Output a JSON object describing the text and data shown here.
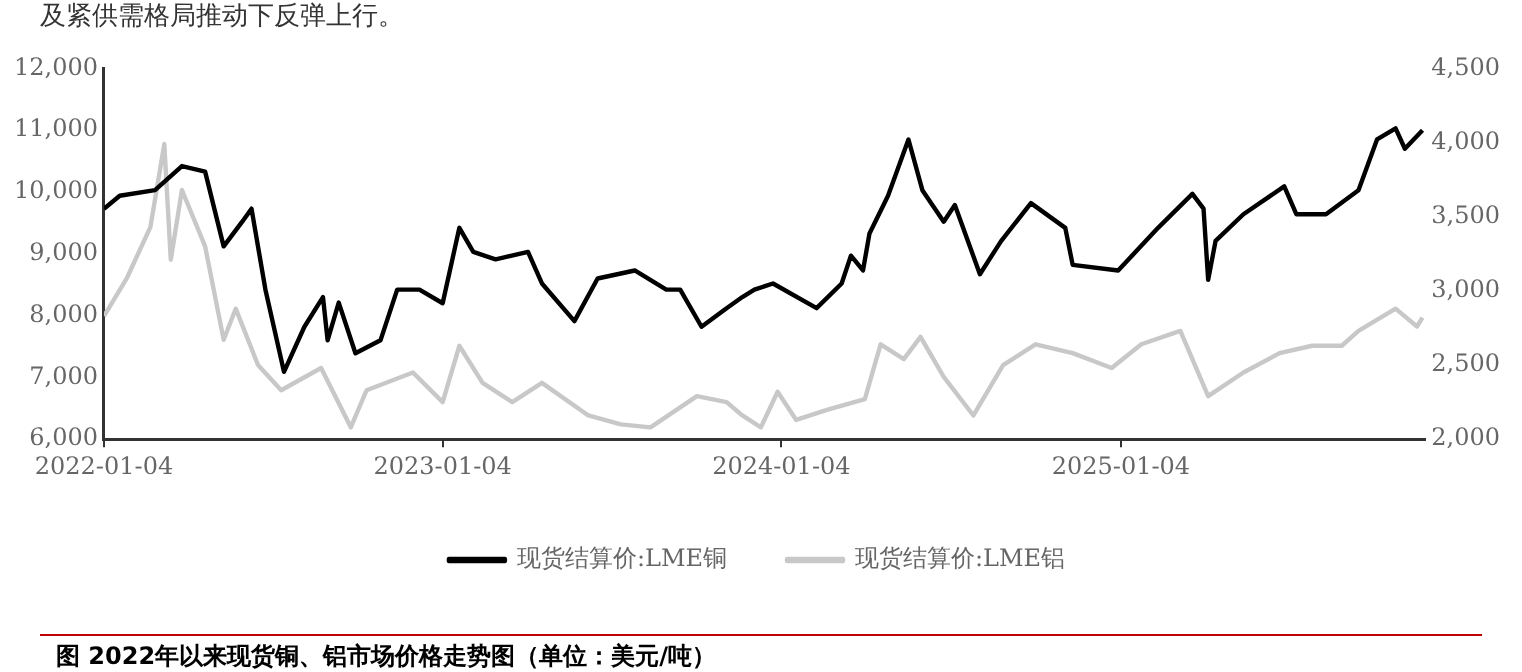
{
  "chart_data": {
    "type": "line",
    "title": "图  2022年以来现货铜、铝市场价格走势图（单位：美元/吨）",
    "annotations": [
      "及紧供需格局推动下反弹上行。"
    ],
    "legend": "bottom",
    "grid": false,
    "marker": "none",
    "line_style": "solid",
    "xlim": [
      "2022-01-04",
      "2025-11-28"
    ],
    "xticks": [
      "2022-01-04",
      "2023-01-04",
      "2024-01-04",
      "2025-01-04"
    ],
    "ylim": [
      6000,
      12000
    ],
    "yticks": [
      {
        "value": 6000,
        "label": "6,000"
      },
      {
        "value": 7000,
        "label": "7,000"
      },
      {
        "value": 8000,
        "label": "8,000"
      },
      {
        "value": 9000,
        "label": "9,000"
      },
      {
        "value": 10000,
        "label": "10,000"
      },
      {
        "value": 11000,
        "label": "11,000"
      },
      {
        "value": 12000,
        "label": "12,000"
      }
    ],
    "y2lim": [
      2000,
      4500
    ],
    "y2ticks": [
      {
        "value": 2000,
        "label": "2,000"
      },
      {
        "value": 2500,
        "label": "2,500"
      },
      {
        "value": 3000,
        "label": "3,000"
      },
      {
        "value": 3500,
        "label": "3,500"
      },
      {
        "value": 4000,
        "label": "4,000"
      },
      {
        "value": 4500,
        "label": "4,500"
      }
    ],
    "series": [
      {
        "name": "现货结算价:LME铜",
        "color": "#000000",
        "x": [
          "2022-01-04",
          "2022-01-21",
          "2022-02-28",
          "2022-03-29",
          "2022-04-23",
          "2022-05-13",
          "2022-06-02",
          "2022-06-12",
          "2022-06-27",
          "2022-07-17",
          "2022-08-08",
          "2022-08-28",
          "2022-09-02",
          "2022-09-14",
          "2022-10-02",
          "2022-10-29",
          "2022-11-16",
          "2022-12-10",
          "2023-01-04",
          "2023-01-22",
          "2023-02-06",
          "2023-03-02",
          "2023-04-06",
          "2023-04-21",
          "2023-05-26",
          "2023-06-20",
          "2023-07-30",
          "2023-09-02",
          "2023-09-17",
          "2023-10-10",
          "2023-11-06",
          "2023-11-23",
          "2023-12-06",
          "2023-12-26",
          "2024-02-11",
          "2024-03-09",
          "2024-03-19",
          "2024-04-01",
          "2024-04-08",
          "2024-04-28",
          "2024-05-20",
          "2024-06-04",
          "2024-06-27",
          "2024-07-09",
          "2024-08-05",
          "2024-08-28",
          "2024-09-29",
          "2024-11-05",
          "2024-11-13",
          "2025-01-01",
          "2025-02-13",
          "2025-03-22",
          "2025-04-03",
          "2025-04-08",
          "2025-04-16",
          "2025-05-16",
          "2025-06-29",
          "2025-07-12",
          "2025-08-13",
          "2025-09-17",
          "2025-10-07",
          "2025-10-27",
          "2025-11-06",
          "2025-11-25"
        ],
        "values": [
          9730,
          9940,
          10030,
          10420,
          10330,
          9120,
          9520,
          9730,
          8420,
          7090,
          7820,
          8300,
          7600,
          8210,
          7390,
          7600,
          8420,
          8420,
          8200,
          9420,
          9030,
          8910,
          9030,
          8520,
          7910,
          8600,
          8730,
          8420,
          8420,
          7820,
          8120,
          8300,
          8420,
          8520,
          8120,
          8520,
          8970,
          8730,
          9330,
          9940,
          10850,
          10030,
          9520,
          9790,
          8670,
          9210,
          9820,
          9420,
          8820,
          8730,
          9420,
          9970,
          9730,
          8580,
          9210,
          9640,
          10090,
          9640,
          9640,
          10030,
          10850,
          11030,
          10700,
          11000
        ]
      },
      {
        "name": "现货结算价:LME铝",
        "color": "#c8c8c8",
        "axis": "y2",
        "x": [
          "2022-01-04",
          "2022-01-29",
          "2022-02-23",
          "2022-03-10",
          "2022-03-17",
          "2022-03-29",
          "2022-04-23",
          "2022-05-13",
          "2022-05-26",
          "2022-06-19",
          "2022-07-14",
          "2022-08-26",
          "2022-09-27",
          "2022-10-14",
          "2022-12-03",
          "2023-01-04",
          "2023-01-22",
          "2023-02-16",
          "2023-03-20",
          "2023-04-21",
          "2023-06-10",
          "2023-07-15",
          "2023-08-16",
          "2023-10-05",
          "2023-11-06",
          "2023-11-23",
          "2023-12-13",
          "2023-12-31",
          "2024-01-20",
          "2024-02-23",
          "2024-04-03",
          "2024-04-20",
          "2024-05-15",
          "2024-06-02",
          "2024-06-27",
          "2024-07-29",
          "2024-08-30",
          "2024-10-04",
          "2024-11-13",
          "2024-12-25",
          "2025-01-26",
          "2025-03-09",
          "2025-04-08",
          "2025-05-16",
          "2025-06-24",
          "2025-07-29",
          "2025-08-30",
          "2025-09-17",
          "2025-10-27",
          "2025-11-19",
          "2025-11-25"
        ],
        "values": [
          2830,
          3090,
          3430,
          3990,
          3210,
          3680,
          3300,
          2670,
          2880,
          2500,
          2330,
          2480,
          2080,
          2330,
          2450,
          2250,
          2630,
          2380,
          2250,
          2380,
          2160,
          2100,
          2080,
          2290,
          2250,
          2160,
          2080,
          2320,
          2130,
          2200,
          2270,
          2640,
          2540,
          2690,
          2420,
          2160,
          2500,
          2640,
          2580,
          2480,
          2640,
          2730,
          2290,
          2450,
          2580,
          2630,
          2630,
          2730,
          2880,
          2760,
          2820
        ]
      }
    ]
  }
}
